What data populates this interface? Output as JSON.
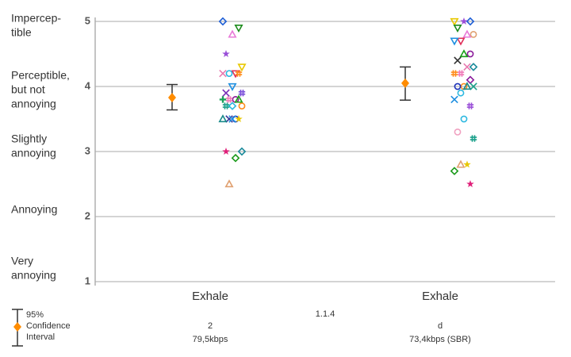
{
  "chart_data": {
    "type": "listening-test",
    "ylim": [
      1,
      5
    ],
    "yticks": [
      1,
      2,
      3,
      4,
      5
    ],
    "grid": true,
    "scale_labels": [
      [
        "Very",
        "annoying"
      ],
      [
        "Annoying"
      ],
      [
        "Slightly",
        "annoying"
      ],
      [
        "Perceptible,",
        "but not",
        "annoying"
      ],
      [
        "Impercep-",
        "tible"
      ]
    ],
    "group_title": "1.1.4",
    "legend": [
      "95%",
      "Confidence",
      "Interval"
    ],
    "mean_color": "#ff8c00",
    "groups": [
      {
        "codec": "Exhale",
        "setting": "2",
        "bitrate": "79,5kbps",
        "mean": 3.83,
        "ci_low": 3.64,
        "ci_high": 4.03,
        "scores": [
          5.0,
          4.9,
          4.8,
          4.5,
          4.3,
          4.2,
          4.2,
          4.2,
          4.2,
          4.0,
          3.9,
          3.9,
          3.8,
          3.8,
          3.8,
          3.8,
          3.7,
          3.7,
          3.7,
          3.5,
          3.5,
          3.5,
          3.5,
          3.5,
          3.0,
          3.0,
          2.9,
          2.5
        ],
        "markers": [
          "diamond",
          "tri-down",
          "tri-up",
          "star",
          "tri-down",
          "tri-down",
          "circle",
          "x",
          "hash",
          "tri-down",
          "x",
          "hash",
          "circle",
          "hash",
          "plus",
          "tri-up",
          "diamond",
          "hash",
          "circle",
          "circle",
          "x",
          "tri-up",
          "star",
          "x",
          "star",
          "diamond",
          "diamond",
          "tri-up"
        ],
        "colors": [
          "#1f5fd6",
          "#1a8a1a",
          "#e87ad8",
          "#9a4fd8",
          "#e8c800",
          "#e0305a",
          "#2cb8e0",
          "#e87ab0",
          "#ff8c1a",
          "#1f8fe0",
          "#7a2fb8",
          "#7a4fd8",
          "#8a1a9a",
          "#f07ab8",
          "#1aa05a",
          "#1aa01a",
          "#2cb8e0",
          "#1aa08a",
          "#ff8c1a",
          "#1a2fb8",
          "#333399",
          "#1a8a8a",
          "#e8c800",
          "#1f8fe0",
          "#e0207a",
          "#1a8a9a",
          "#1a9a1a",
          "#e0a070"
        ]
      },
      {
        "codec": "Exhale",
        "setting": "d",
        "bitrate": "73,4kbps (SBR)",
        "mean": 4.05,
        "ci_low": 3.79,
        "ci_high": 4.3,
        "scores": [
          5.0,
          5.0,
          5.0,
          4.9,
          4.8,
          4.8,
          4.7,
          4.7,
          4.5,
          4.5,
          4.4,
          4.3,
          4.3,
          4.2,
          4.2,
          4.1,
          4.0,
          4.0,
          4.0,
          4.0,
          3.9,
          3.8,
          3.7,
          3.5,
          3.3,
          3.2,
          2.8,
          2.8,
          2.7,
          2.5
        ],
        "markers": [
          "tri-down",
          "diamond",
          "star",
          "tri-down",
          "circle",
          "tri-up",
          "tri-down",
          "tri-down",
          "circle",
          "tri-up",
          "x",
          "diamond",
          "x",
          "hash",
          "hash",
          "diamond",
          "circle",
          "circle",
          "x",
          "tri-up",
          "circle",
          "x",
          "hash",
          "circle",
          "circle",
          "hash",
          "star",
          "tri-up",
          "diamond",
          "star"
        ],
        "colors": [
          "#e8c800",
          "#1f5fd6",
          "#9a4fd8",
          "#1a8a1a",
          "#e0a070",
          "#e87ad8",
          "#e0305a",
          "#1f8fe0",
          "#8a1a9a",
          "#1aa01a",
          "#333333",
          "#1a8a9a",
          "#e87ab0",
          "#f07ab8",
          "#ff8c1a",
          "#8a1a9a",
          "#ff8c1a",
          "#1a2fb8",
          "#1aa08a",
          "#1a8a8a",
          "#2cb8e0",
          "#1f8fe0",
          "#9a4fd8",
          "#2cb8e0",
          "#f0a0c0",
          "#1aa08a",
          "#e8c800",
          "#e0a070",
          "#1a9a1a",
          "#e0207a"
        ]
      }
    ]
  }
}
